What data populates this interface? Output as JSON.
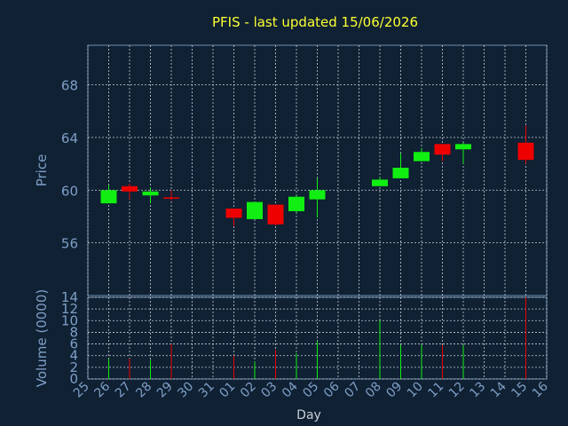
{
  "chart_data": {
    "type": "candlestick",
    "title": "PFIS - last updated 15/06/2026",
    "xlabel": "Day",
    "price_panel": {
      "ylabel": "Price",
      "yticks": [
        56,
        60,
        64,
        68
      ],
      "ylim": [
        52,
        71
      ],
      "grid": true
    },
    "volume_panel": {
      "ylabel": "Volume (0000)",
      "yticks": [
        0,
        2,
        4,
        6,
        8,
        10,
        12,
        14
      ],
      "ylim": [
        0,
        14
      ],
      "grid": true
    },
    "x_ticks": [
      "25",
      "26",
      "27",
      "28",
      "29",
      "30",
      "31",
      "01",
      "02",
      "03",
      "04",
      "05",
      "06",
      "07",
      "08",
      "09",
      "10",
      "11",
      "12",
      "13",
      "14",
      "15",
      "16"
    ],
    "candles": [
      {
        "day": "26",
        "open": 59.0,
        "high": 60.4,
        "low": 59.0,
        "close": 60.0,
        "volume": 3.5
      },
      {
        "day": "27",
        "open": 60.3,
        "high": 60.5,
        "low": 59.3,
        "close": 59.9,
        "volume": 3.5
      },
      {
        "day": "28",
        "open": 59.6,
        "high": 60.2,
        "low": 59.0,
        "close": 59.9,
        "volume": 3.3
      },
      {
        "day": "29",
        "open": 59.45,
        "high": 60.0,
        "low": 59.2,
        "close": 59.35,
        "volume": 6.0
      },
      {
        "day": "01",
        "open": 58.6,
        "high": 58.6,
        "low": 57.3,
        "close": 57.9,
        "volume": 4.0
      },
      {
        "day": "02",
        "open": 57.8,
        "high": 59.1,
        "low": 57.8,
        "close": 59.1,
        "volume": 3.0
      },
      {
        "day": "03",
        "open": 58.9,
        "high": 58.9,
        "low": 57.3,
        "close": 57.4,
        "volume": 5.0
      },
      {
        "day": "04",
        "open": 58.4,
        "high": 59.6,
        "low": 58.3,
        "close": 59.5,
        "volume": 4.4
      },
      {
        "day": "05",
        "open": 59.3,
        "high": 60.9,
        "low": 57.9,
        "close": 60.0,
        "volume": 6.5
      },
      {
        "day": "08",
        "open": 60.3,
        "high": 61.0,
        "low": 60.3,
        "close": 60.8,
        "volume": 10.0
      },
      {
        "day": "09",
        "open": 60.9,
        "high": 62.8,
        "low": 60.9,
        "close": 61.7,
        "volume": 5.8
      },
      {
        "day": "10",
        "open": 62.2,
        "high": 63.2,
        "low": 62.2,
        "close": 62.9,
        "volume": 5.8
      },
      {
        "day": "11",
        "open": 63.5,
        "high": 63.5,
        "low": 62.2,
        "close": 62.7,
        "volume": 5.8
      },
      {
        "day": "12",
        "open": 63.1,
        "high": 63.6,
        "low": 62.0,
        "close": 63.5,
        "volume": 5.8
      },
      {
        "day": "15",
        "open": 63.6,
        "high": 64.9,
        "low": 62.0,
        "close": 62.3,
        "volume": 14.0
      }
    ],
    "colors": {
      "background": "#0f2133",
      "grid": "#c8d0d8",
      "axis_text": "#7f9fc7",
      "title": "#ffff33",
      "up": "#11ee11",
      "down": "#ee0000",
      "frame": "#6f8fb0"
    }
  }
}
